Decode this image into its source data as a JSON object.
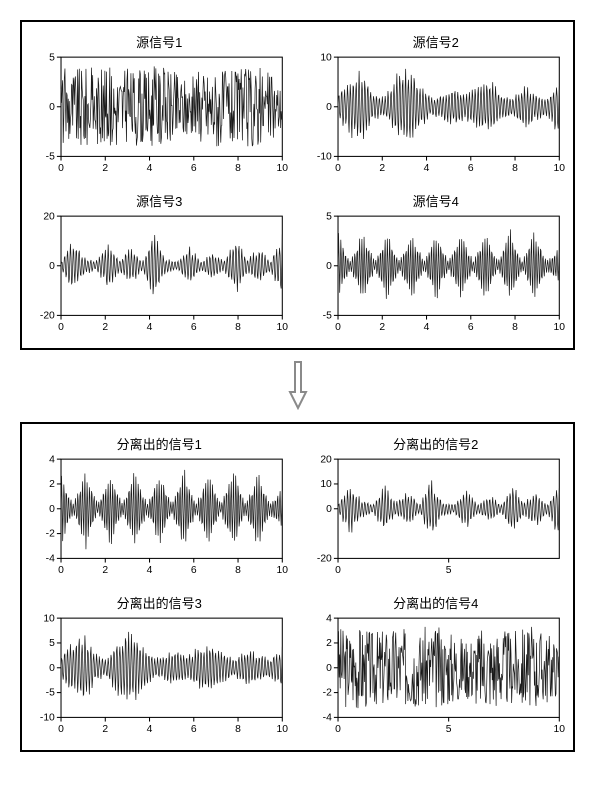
{
  "figure": {
    "background": "#ffffff",
    "border_color": "#000000",
    "signal_color": "#1a1a1a",
    "axis_color": "#000000",
    "tick_color": "#000000",
    "title_fontsize": 13,
    "tick_fontsize": 10
  },
  "top_group": {
    "charts": [
      {
        "title": "源信号1",
        "ylim": [
          -5,
          5
        ],
        "yticks": [
          -5,
          0,
          5
        ],
        "xlim": [
          0,
          10
        ],
        "xticks": [
          0,
          2,
          4,
          6,
          8,
          10
        ],
        "style": "dense-noise",
        "envelope": [
          4.2,
          4.0,
          4.3,
          3.8,
          4.1,
          4.2,
          4.0,
          3.9,
          4.3,
          4.0,
          3.7,
          2.8,
          3.9,
          4.1,
          4.0,
          3.8,
          4.2,
          4.1,
          3.6,
          2.2
        ]
      },
      {
        "title": "源信号2",
        "ylim": [
          -10,
          10
        ],
        "yticks": [
          -10,
          0,
          10
        ],
        "xlim": [
          0,
          10
        ],
        "xticks": [
          0,
          2,
          4,
          6,
          8,
          10
        ],
        "style": "bursts",
        "envelope": [
          3,
          6,
          8,
          3,
          2,
          7,
          9,
          5,
          2,
          3,
          4,
          3,
          5,
          6,
          3,
          2,
          5,
          3,
          2,
          7
        ]
      },
      {
        "title": "源信号3",
        "ylim": [
          -20,
          20
        ],
        "yticks": [
          -20,
          0,
          20
        ],
        "xlim": [
          0,
          10
        ],
        "xticks": [
          0,
          2,
          4,
          6,
          8,
          10
        ],
        "style": "spindles",
        "envelope": [
          2,
          12,
          4,
          2,
          10,
          3,
          8,
          2,
          14,
          3,
          2,
          9,
          2,
          6,
          2,
          12,
          3,
          8,
          2,
          15
        ]
      },
      {
        "title": "源信号4",
        "ylim": [
          -5,
          5
        ],
        "yticks": [
          -5,
          0,
          5
        ],
        "xlim": [
          0,
          10
        ],
        "xticks": [
          0,
          2,
          4,
          6,
          8,
          10
        ],
        "style": "periodic-bursts",
        "envelope": [
          3.5,
          0.5,
          3.8,
          0.5,
          3.7,
          0.5,
          3.9,
          0.5,
          3.6,
          0.5,
          3.8,
          0.5,
          3.7,
          0.5,
          3.9,
          0.5,
          3.8,
          0.6,
          2.0
        ]
      }
    ]
  },
  "bottom_group": {
    "charts": [
      {
        "title": "分离出的信号1",
        "ylim": [
          -4,
          4
        ],
        "yticks": [
          -4,
          -2,
          0,
          2,
          4
        ],
        "xlim": [
          0,
          10
        ],
        "xticks": [
          0,
          2,
          4,
          6,
          8,
          10
        ],
        "style": "periodic-bursts",
        "envelope": [
          3.2,
          0.4,
          3.4,
          0.4,
          3.3,
          0.4,
          3.5,
          0.4,
          3.2,
          0.4,
          3.4,
          0.4,
          3.3,
          0.4,
          3.5,
          0.4,
          3.3,
          0.5,
          1.8
        ]
      },
      {
        "title": "分离出的信号2",
        "ylim": [
          -20,
          20
        ],
        "yticks": [
          -20,
          0,
          10,
          20
        ],
        "xlim": [
          0,
          10
        ],
        "xticks": [
          0,
          5
        ],
        "style": "spindles",
        "envelope": [
          2,
          11,
          4,
          2,
          10,
          3,
          8,
          2,
          13,
          3,
          2,
          9,
          2,
          6,
          2,
          11,
          3,
          8,
          2,
          14
        ]
      },
      {
        "title": "分离出的信号3",
        "ylim": [
          -10,
          10
        ],
        "yticks": [
          -10,
          -5,
          0,
          5,
          10
        ],
        "xlim": [
          0,
          10
        ],
        "xticks": [
          0,
          2,
          4,
          6,
          8,
          10
        ],
        "style": "bursts",
        "envelope": [
          3,
          6,
          8,
          3,
          2,
          7,
          8,
          5,
          2,
          3,
          4,
          3,
          5,
          5,
          3,
          2,
          4,
          3,
          2,
          5
        ]
      },
      {
        "title": "分离出的信号4",
        "ylim": [
          -4,
          4
        ],
        "yticks": [
          -4,
          -2,
          0,
          2,
          4
        ],
        "xlim": [
          0,
          10
        ],
        "xticks": [
          0,
          5,
          10
        ],
        "style": "dense-noise",
        "envelope": [
          3.4,
          3.2,
          3.5,
          3.0,
          3.3,
          3.4,
          3.2,
          3.1,
          3.5,
          3.2,
          3.0,
          2.4,
          3.2,
          3.4,
          3.2,
          3.0,
          3.4,
          3.3,
          2.9,
          2.0
        ]
      }
    ]
  },
  "arrow": {
    "color": "#8a8a8a",
    "stroke_width": 2
  }
}
